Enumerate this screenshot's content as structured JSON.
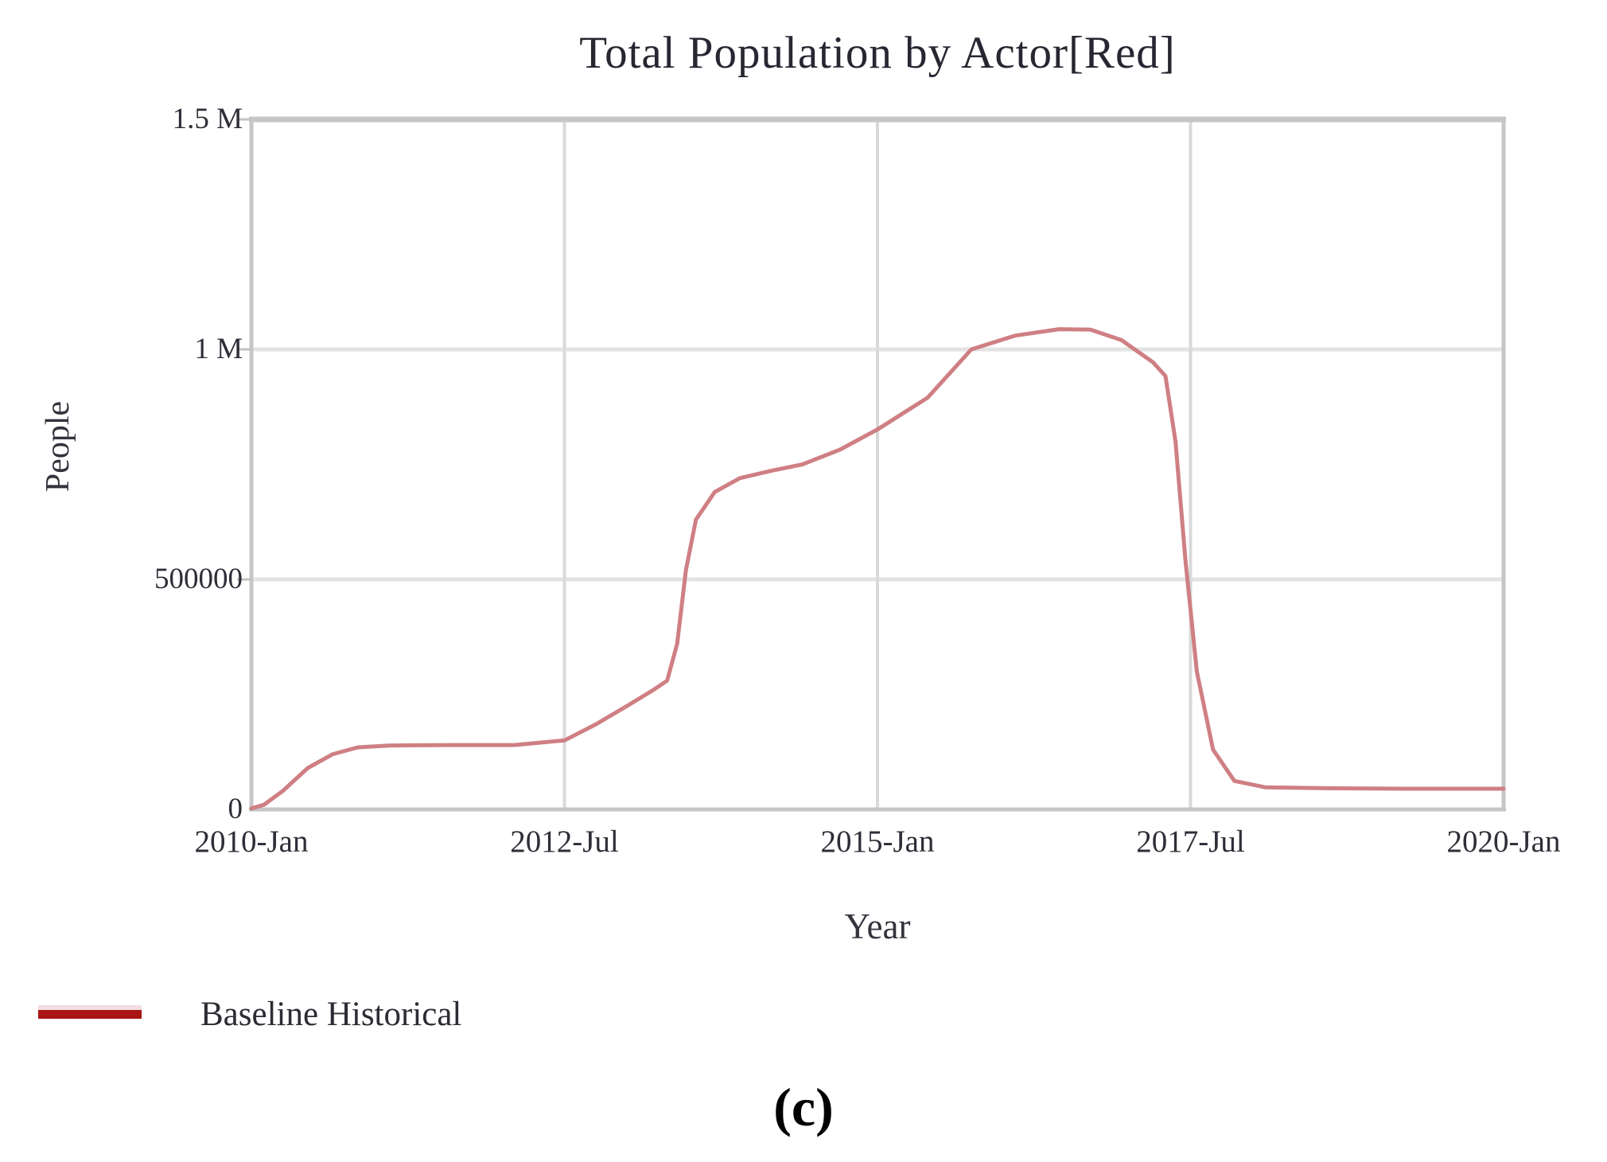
{
  "figure": {
    "title": "Total Population by Actor[Red]",
    "x_axis_label": "Year",
    "y_axis_label": "People",
    "caption": "(c)",
    "legend": [
      {
        "label": "Baseline Historical",
        "color": "#a91616"
      }
    ]
  },
  "colors": {
    "curve": "#cf7f83",
    "legend_swatch": "#a91616",
    "grid_vertical": "#d9d9d9",
    "grid_horizontal": "#e3e3e3",
    "frame": "#c6c6c6",
    "tick": "#c2c2c2",
    "text": "#2e2e38",
    "title_text": "#272733"
  },
  "chart_data": {
    "type": "line",
    "title": "Total Population by Actor[Red]",
    "xlabel": "Year",
    "ylabel": "People",
    "xlim": [
      2010.0,
      2020.0
    ],
    "ylim": [
      0,
      1500000
    ],
    "grid": true,
    "legend_position": "bottom-left",
    "x_ticks": [
      {
        "value": 2010.0,
        "label": "2010-Jan"
      },
      {
        "value": 2012.5,
        "label": "2012-Jul"
      },
      {
        "value": 2015.0,
        "label": "2015-Jan"
      },
      {
        "value": 2017.5,
        "label": "2017-Jul"
      },
      {
        "value": 2020.0,
        "label": "2020-Jan"
      }
    ],
    "y_ticks": [
      {
        "value": 0,
        "label": "0"
      },
      {
        "value": 500000,
        "label": "500000"
      },
      {
        "value": 1000000,
        "label": "1 M"
      },
      {
        "value": 1500000,
        "label": "1.5 M"
      }
    ],
    "series": [
      {
        "name": "Baseline Historical",
        "color": "#cf7f83",
        "points": [
          [
            2010.0,
            2000
          ],
          [
            2010.1,
            10000
          ],
          [
            2010.25,
            40000
          ],
          [
            2010.45,
            90000
          ],
          [
            2010.65,
            120000
          ],
          [
            2010.85,
            135000
          ],
          [
            2011.1,
            139000
          ],
          [
            2011.6,
            140000
          ],
          [
            2012.1,
            140000
          ],
          [
            2012.5,
            150000
          ],
          [
            2012.75,
            185000
          ],
          [
            2013.0,
            225000
          ],
          [
            2013.2,
            258000
          ],
          [
            2013.32,
            280000
          ],
          [
            2013.4,
            360000
          ],
          [
            2013.47,
            520000
          ],
          [
            2013.55,
            630000
          ],
          [
            2013.7,
            690000
          ],
          [
            2013.9,
            720000
          ],
          [
            2014.15,
            736000
          ],
          [
            2014.4,
            750000
          ],
          [
            2014.7,
            782000
          ],
          [
            2015.0,
            826000
          ],
          [
            2015.4,
            895000
          ],
          [
            2015.75,
            1000000
          ],
          [
            2016.1,
            1030000
          ],
          [
            2016.45,
            1044000
          ],
          [
            2016.7,
            1043000
          ],
          [
            2016.95,
            1020000
          ],
          [
            2017.2,
            972000
          ],
          [
            2017.3,
            942000
          ],
          [
            2017.38,
            800000
          ],
          [
            2017.46,
            540000
          ],
          [
            2017.55,
            300000
          ],
          [
            2017.68,
            130000
          ],
          [
            2017.85,
            62000
          ],
          [
            2018.1,
            48000
          ],
          [
            2018.6,
            46000
          ],
          [
            2019.2,
            45000
          ],
          [
            2020.0,
            45000
          ]
        ]
      }
    ]
  }
}
